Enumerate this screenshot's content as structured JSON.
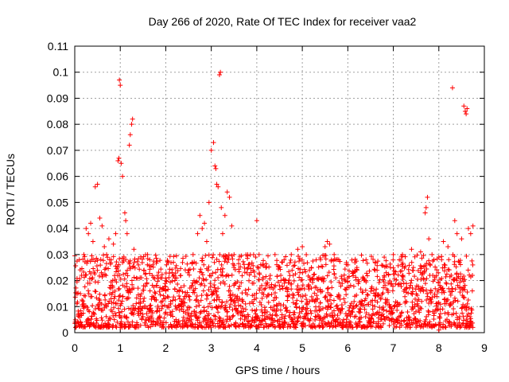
{
  "chart_data": {
    "type": "scatter",
    "title": "Day 266 of 2020, Rate Of TEC Index for receiver vaa2",
    "xlabel": "GPS time / hours",
    "ylabel": "ROTI / TECUs",
    "xlim": [
      0,
      9
    ],
    "ylim": [
      0,
      0.11
    ],
    "x_ticks": [
      "0",
      "1",
      "2",
      "3",
      "4",
      "5",
      "6",
      "7",
      "8",
      "9"
    ],
    "y_ticks": [
      "0",
      "0.01",
      "0.02",
      "0.03",
      "0.04",
      "0.05",
      "0.06",
      "0.07",
      "0.08",
      "0.09",
      "0.1",
      "0.11"
    ],
    "grid": true,
    "marker": "+",
    "color": "#ff0000",
    "series": [
      {
        "name": "vaa2",
        "points": [
          [
            0.05,
            0.015
          ],
          [
            0.1,
            0.028
          ],
          [
            0.15,
            0.022
          ],
          [
            0.2,
            0.03
          ],
          [
            0.25,
            0.04
          ],
          [
            0.3,
            0.038
          ],
          [
            0.35,
            0.042
          ],
          [
            0.4,
            0.035
          ],
          [
            0.45,
            0.056
          ],
          [
            0.5,
            0.057
          ],
          [
            0.55,
            0.044
          ],
          [
            0.6,
            0.041
          ],
          [
            0.65,
            0.033
          ],
          [
            0.7,
            0.03
          ],
          [
            0.75,
            0.036
          ],
          [
            0.8,
            0.028
          ],
          [
            0.85,
            0.034
          ],
          [
            0.9,
            0.038
          ],
          [
            0.95,
            0.066
          ],
          [
            0.97,
            0.067
          ],
          [
            0.98,
            0.097
          ],
          [
            1.0,
            0.095
          ],
          [
            1.02,
            0.065
          ],
          [
            1.05,
            0.06
          ],
          [
            1.1,
            0.046
          ],
          [
            1.12,
            0.043
          ],
          [
            1.15,
            0.038
          ],
          [
            1.2,
            0.072
          ],
          [
            1.22,
            0.076
          ],
          [
            1.25,
            0.08
          ],
          [
            1.27,
            0.082
          ],
          [
            1.3,
            0.032
          ],
          [
            1.4,
            0.026
          ],
          [
            1.6,
            0.03
          ],
          [
            1.65,
            0.028
          ],
          [
            1.7,
            0.022
          ],
          [
            1.8,
            0.018
          ],
          [
            2.0,
            0.016
          ],
          [
            2.2,
            0.02
          ],
          [
            2.4,
            0.018
          ],
          [
            2.5,
            0.024
          ],
          [
            2.6,
            0.03
          ],
          [
            2.7,
            0.038
          ],
          [
            2.75,
            0.045
          ],
          [
            2.8,
            0.04
          ],
          [
            2.85,
            0.042
          ],
          [
            2.9,
            0.035
          ],
          [
            2.95,
            0.05
          ],
          [
            3.0,
            0.07
          ],
          [
            3.05,
            0.073
          ],
          [
            3.08,
            0.064
          ],
          [
            3.1,
            0.063
          ],
          [
            3.12,
            0.057
          ],
          [
            3.15,
            0.056
          ],
          [
            3.18,
            0.099
          ],
          [
            3.2,
            0.1
          ],
          [
            3.22,
            0.048
          ],
          [
            3.25,
            0.038
          ],
          [
            3.3,
            0.045
          ],
          [
            3.35,
            0.054
          ],
          [
            3.4,
            0.052
          ],
          [
            3.45,
            0.041
          ],
          [
            3.5,
            0.03
          ],
          [
            3.6,
            0.028
          ],
          [
            3.8,
            0.03
          ],
          [
            4.0,
            0.043
          ],
          [
            4.05,
            0.03
          ],
          [
            4.2,
            0.025
          ],
          [
            4.4,
            0.03
          ],
          [
            4.6,
            0.028
          ],
          [
            4.8,
            0.022
          ],
          [
            4.9,
            0.032
          ],
          [
            5.0,
            0.033
          ],
          [
            5.2,
            0.025
          ],
          [
            5.4,
            0.028
          ],
          [
            5.5,
            0.033
          ],
          [
            5.55,
            0.035
          ],
          [
            5.6,
            0.034
          ],
          [
            5.7,
            0.03
          ],
          [
            5.8,
            0.028
          ],
          [
            6.0,
            0.026
          ],
          [
            6.2,
            0.025
          ],
          [
            6.4,
            0.028
          ],
          [
            6.6,
            0.027
          ],
          [
            6.8,
            0.029
          ],
          [
            7.0,
            0.03
          ],
          [
            7.2,
            0.03
          ],
          [
            7.4,
            0.032
          ],
          [
            7.6,
            0.031
          ],
          [
            7.7,
            0.046
          ],
          [
            7.72,
            0.048
          ],
          [
            7.75,
            0.052
          ],
          [
            7.78,
            0.036
          ],
          [
            7.85,
            0.03
          ],
          [
            8.0,
            0.029
          ],
          [
            8.1,
            0.035
          ],
          [
            8.2,
            0.033
          ],
          [
            8.3,
            0.094
          ],
          [
            8.35,
            0.043
          ],
          [
            8.4,
            0.038
          ],
          [
            8.5,
            0.036
          ],
          [
            8.55,
            0.087
          ],
          [
            8.58,
            0.085
          ],
          [
            8.6,
            0.084
          ],
          [
            8.62,
            0.086
          ],
          [
            8.65,
            0.04
          ],
          [
            8.7,
            0.038
          ],
          [
            8.75,
            0.041
          ],
          [
            8.0,
            0.001
          ],
          [
            1.0,
            0.002
          ]
        ]
      }
    ],
    "band": {
      "description": "dense scatter of ROTI values in the 0.002-0.03 range across the observed hours",
      "x_range": [
        0,
        8.75
      ],
      "y_range": [
        0.002,
        0.03
      ],
      "count": 2200
    }
  }
}
